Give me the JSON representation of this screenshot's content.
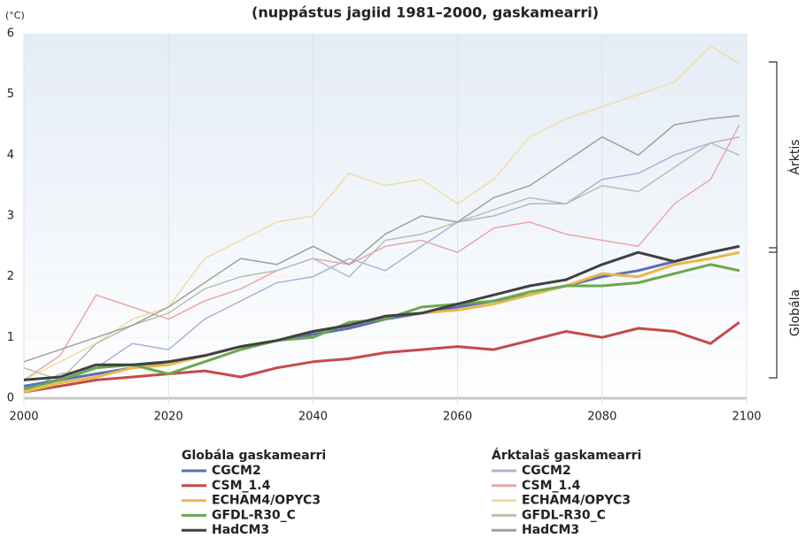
{
  "chart_data": {
    "type": "line",
    "title": "(nuppástus jagiid 1981–2000, gaskamearri)",
    "y_unit": "(°C)",
    "x": [
      2000,
      2005,
      2010,
      2015,
      2020,
      2025,
      2030,
      2035,
      2040,
      2045,
      2050,
      2055,
      2060,
      2065,
      2070,
      2075,
      2080,
      2085,
      2090,
      2095,
      2099
    ],
    "xlim": [
      2000,
      2100
    ],
    "xticks": [
      2000,
      2020,
      2040,
      2060,
      2080,
      2100
    ],
    "ylim": [
      0,
      6
    ],
    "yticks": [
      0,
      1,
      2,
      3,
      4,
      5,
      6
    ],
    "grid": true,
    "legend_titles": [
      "Globála gaskamearri",
      "Árktalaš gaskamearri"
    ],
    "annotations": [
      "Árktis",
      "Globála"
    ],
    "series": [
      {
        "name": "CGCM2",
        "group": 0,
        "color": "#5b6db8",
        "values": [
          0.2,
          0.3,
          0.4,
          0.5,
          0.6,
          0.7,
          0.85,
          0.95,
          1.05,
          1.15,
          1.3,
          1.4,
          1.5,
          1.6,
          1.7,
          1.85,
          2.0,
          2.1,
          2.25,
          2.4,
          2.5
        ]
      },
      {
        "name": "CSM_1.4",
        "group": 0,
        "color": "#c44a4a",
        "values": [
          0.1,
          0.2,
          0.3,
          0.35,
          0.4,
          0.45,
          0.35,
          0.5,
          0.6,
          0.65,
          0.75,
          0.8,
          0.85,
          0.8,
          0.95,
          1.1,
          1.0,
          1.15,
          1.1,
          0.9,
          1.25
        ]
      },
      {
        "name": "ECHAM4/OPYC3",
        "group": 0,
        "color": "#e8b84a",
        "values": [
          0.1,
          0.25,
          0.35,
          0.5,
          0.55,
          0.7,
          0.85,
          0.95,
          1.1,
          1.2,
          1.35,
          1.4,
          1.45,
          1.55,
          1.7,
          1.85,
          2.05,
          2.0,
          2.2,
          2.3,
          2.4
        ]
      },
      {
        "name": "GFDL-R30_C",
        "group": 0,
        "color": "#6aa84f",
        "values": [
          0.15,
          0.3,
          0.5,
          0.55,
          0.4,
          0.6,
          0.8,
          0.95,
          1.0,
          1.25,
          1.3,
          1.5,
          1.55,
          1.6,
          1.75,
          1.85,
          1.85,
          1.9,
          2.05,
          2.2,
          2.1
        ]
      },
      {
        "name": "HadCM3",
        "group": 0,
        "color": "#404040",
        "values": [
          0.3,
          0.35,
          0.55,
          0.55,
          0.6,
          0.7,
          0.85,
          0.95,
          1.1,
          1.2,
          1.35,
          1.4,
          1.55,
          1.7,
          1.85,
          1.95,
          2.2,
          2.4,
          2.25,
          2.4,
          2.5
        ]
      },
      {
        "name": "CGCM2",
        "group": 1,
        "color": "#b0b0d8",
        "values": [
          0.1,
          0.4,
          0.5,
          0.9,
          0.8,
          1.3,
          1.6,
          1.9,
          2.0,
          2.3,
          2.1,
          2.5,
          2.9,
          3.0,
          3.2,
          3.2,
          3.6,
          3.7,
          4.0,
          4.2,
          4.3
        ]
      },
      {
        "name": "CSM_1.4",
        "group": 1,
        "color": "#e8a8a8",
        "values": [
          0.3,
          0.7,
          1.7,
          1.5,
          1.3,
          1.6,
          1.8,
          2.1,
          2.3,
          2.2,
          2.5,
          2.6,
          2.4,
          2.8,
          2.9,
          2.7,
          2.6,
          2.5,
          3.2,
          3.6,
          4.5
        ]
      },
      {
        "name": "ECHAM4/OPYC3",
        "group": 1,
        "color": "#f2dca0",
        "values": [
          0.3,
          0.6,
          0.9,
          1.3,
          1.5,
          2.3,
          2.6,
          2.9,
          3.0,
          3.7,
          3.5,
          3.6,
          3.2,
          3.6,
          4.3,
          4.6,
          4.8,
          5.0,
          5.2,
          5.8,
          5.5
        ]
      },
      {
        "name": "GFDL-R30_C",
        "group": 1,
        "color": "#b8c0b0",
        "values": [
          0.5,
          0.3,
          0.9,
          1.2,
          1.4,
          1.8,
          2.0,
          2.1,
          2.3,
          2.0,
          2.6,
          2.7,
          2.9,
          3.1,
          3.3,
          3.2,
          3.5,
          3.4,
          3.8,
          4.2,
          4.0
        ]
      },
      {
        "name": "HadCM3",
        "group": 1,
        "color": "#a0a0a0",
        "values": [
          0.6,
          0.8,
          1.0,
          1.2,
          1.5,
          1.9,
          2.3,
          2.2,
          2.5,
          2.2,
          2.7,
          3.0,
          2.9,
          3.3,
          3.5,
          3.9,
          4.3,
          4.0,
          4.5,
          4.6,
          4.65
        ]
      }
    ]
  }
}
